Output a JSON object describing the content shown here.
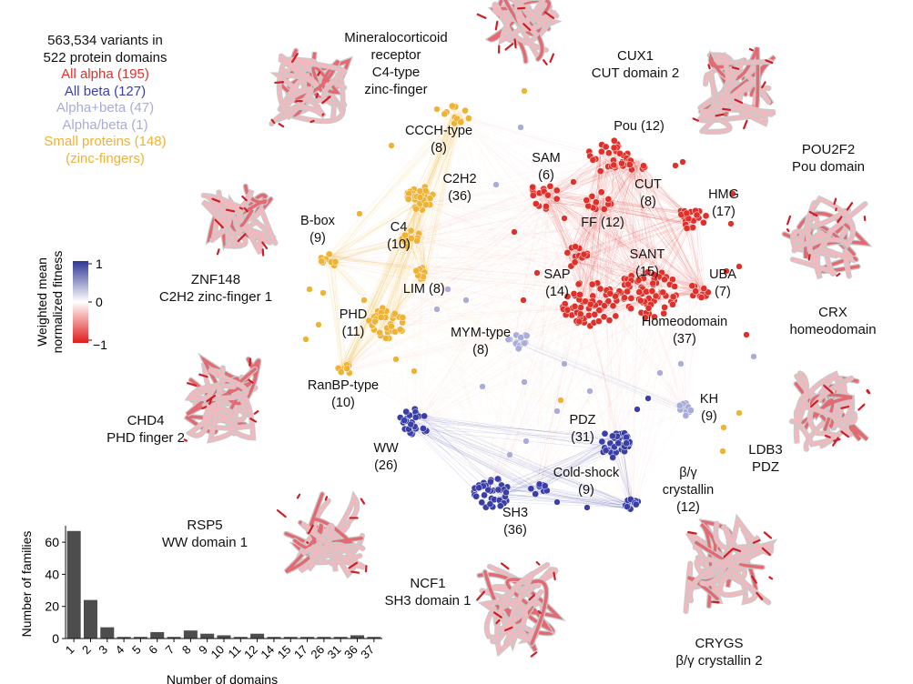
{
  "summary": {
    "total": "563,534 variants in",
    "domains": "522 protein domains",
    "classes": [
      {
        "label": "All alpha (195)",
        "color": "#e0302a"
      },
      {
        "label": "All beta (127)",
        "color": "#3a3fa8"
      },
      {
        "label": "Alpha+beta (47)",
        "color": "#a9acd8"
      },
      {
        "label": "Alpha/beta (1)",
        "color": "#a9acd8"
      },
      {
        "label": "Small proteins (148)",
        "color": "#efb233"
      },
      {
        "label": "(zinc-fingers)",
        "color": "#efb233"
      }
    ]
  },
  "colorbar": {
    "title_line1": "Weighted mean",
    "title_line2": "normalized fitness",
    "ticks": [
      "1",
      "0",
      "−1"
    ],
    "colors": {
      "high": "#2f3593",
      "mid": "#ffffff",
      "low": "#e01b1b"
    }
  },
  "proteins": [
    {
      "lines": [
        "Mineralocorticoid",
        "receptor",
        "C4-type",
        "zinc-finger"
      ]
    },
    {
      "lines": [
        "CUX1",
        "CUT domain 2"
      ]
    },
    {
      "lines": [
        "POU2F2",
        "Pou domain"
      ]
    },
    {
      "lines": [
        "ZNF148",
        "C2H2 zinc-finger 1"
      ]
    },
    {
      "lines": [
        "CRX",
        "homeodomain"
      ]
    },
    {
      "lines": [
        "CHD4",
        "PHD finger 2"
      ]
    },
    {
      "lines": [
        "LDB3",
        "PDZ"
      ]
    },
    {
      "lines": [
        "RSP5",
        "WW domain 1"
      ]
    },
    {
      "lines": [
        "NCF1",
        "SH3 domain 1"
      ]
    },
    {
      "lines": [
        "CRYGS",
        "β/γ crystallin 2"
      ]
    }
  ],
  "network": {
    "colors": {
      "alpha": "#e0302a",
      "beta": "#3a3fa8",
      "mixed": "#a9acd8",
      "small": "#efb233"
    },
    "clusters": [
      {
        "name": "SAM",
        "count": "(6)",
        "class": "alpha"
      },
      {
        "name": "Pou",
        "count": "(12)",
        "class": "alpha"
      },
      {
        "name": "CUT",
        "count": "(8)",
        "class": "alpha"
      },
      {
        "name": "HMG",
        "count": "(17)",
        "class": "alpha"
      },
      {
        "name": "FF",
        "count": "(12)",
        "class": "alpha"
      },
      {
        "name": "SANT",
        "count": "(15)",
        "class": "alpha"
      },
      {
        "name": "SAP",
        "count": "(14)",
        "class": "alpha"
      },
      {
        "name": "UBA",
        "count": "(7)",
        "class": "alpha"
      },
      {
        "name": "Homeodomain",
        "count": "(37)",
        "class": "alpha"
      },
      {
        "name": "CCCH-type",
        "count": "(8)",
        "class": "small"
      },
      {
        "name": "C2H2",
        "count": "(36)",
        "class": "small"
      },
      {
        "name": "B-box",
        "count": "(9)",
        "class": "small"
      },
      {
        "name": "C4",
        "count": "(10)",
        "class": "small"
      },
      {
        "name": "LIM",
        "count": "(8)",
        "class": "small"
      },
      {
        "name": "PHD",
        "count": "(11)",
        "class": "small"
      },
      {
        "name": "RanBP-type",
        "count": "(10)",
        "class": "small"
      },
      {
        "name": "MYM-type",
        "count": "(8)",
        "class": "mixed"
      },
      {
        "name": "KH",
        "count": "(9)",
        "class": "mixed"
      },
      {
        "name": "PDZ",
        "count": "(31)",
        "class": "beta"
      },
      {
        "name": "WW",
        "count": "(26)",
        "class": "beta"
      },
      {
        "name": "Cold-shock",
        "count": "(9)",
        "class": "beta"
      },
      {
        "name": "SH3",
        "count": "(36)",
        "class": "beta"
      },
      {
        "name": "β/γ",
        "name2": "crystallin",
        "count": "(12)",
        "class": "beta"
      }
    ]
  },
  "chart_data": {
    "type": "bar",
    "categories": [
      "1",
      "2",
      "3",
      "4",
      "5",
      "6",
      "7",
      "8",
      "9",
      "10",
      "11",
      "12",
      "14",
      "15",
      "17",
      "26",
      "31",
      "36",
      "37"
    ],
    "values": [
      67,
      24,
      7,
      1,
      1,
      4,
      1,
      5,
      3,
      2,
      1,
      3,
      1,
      1,
      1,
      1,
      1,
      2,
      1
    ],
    "xlabel": "Number of domains",
    "ylabel": "Number of families",
    "ylim": [
      0,
      68
    ],
    "yticks": [
      0,
      20,
      40,
      60
    ],
    "bar_color": "#4d4d4d"
  }
}
